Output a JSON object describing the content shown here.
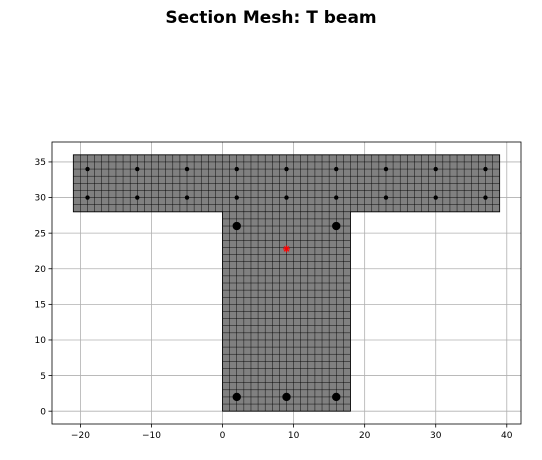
{
  "chart_data": {
    "type": "scatter",
    "title": "Section Mesh: T beam",
    "xlabel": "",
    "ylabel": "",
    "xlim": [
      -24,
      42
    ],
    "ylim": [
      -1.8,
      37.8
    ],
    "xticks": [
      -20,
      -10,
      0,
      10,
      20,
      30,
      40
    ],
    "yticks": [
      0,
      5,
      10,
      15,
      20,
      25,
      30,
      35
    ],
    "xtick_labels": [
      "−20",
      "−10",
      "0",
      "10",
      "20",
      "30",
      "40"
    ],
    "ytick_labels": [
      "0",
      "5",
      "10",
      "15",
      "20",
      "25",
      "30",
      "35"
    ],
    "grid": true,
    "section": {
      "flange": {
        "x": [
          -21,
          39
        ],
        "y": [
          28,
          36
        ]
      },
      "web": {
        "x": [
          0,
          18
        ],
        "y": [
          0,
          28
        ]
      },
      "mesh_size": 1,
      "fill_color": "#808080",
      "mesh_color": "#000000"
    },
    "bars_small": [
      {
        "x": -19,
        "y": 34
      },
      {
        "x": -12,
        "y": 34
      },
      {
        "x": -5,
        "y": 34
      },
      {
        "x": 2,
        "y": 34
      },
      {
        "x": 9,
        "y": 34
      },
      {
        "x": 16,
        "y": 34
      },
      {
        "x": 23,
        "y": 34
      },
      {
        "x": 30,
        "y": 34
      },
      {
        "x": 37,
        "y": 34
      },
      {
        "x": -19,
        "y": 30
      },
      {
        "x": -12,
        "y": 30
      },
      {
        "x": -5,
        "y": 30
      },
      {
        "x": 2,
        "y": 30
      },
      {
        "x": 9,
        "y": 30
      },
      {
        "x": 16,
        "y": 30
      },
      {
        "x": 23,
        "y": 30
      },
      {
        "x": 30,
        "y": 30
      },
      {
        "x": 37,
        "y": 30
      }
    ],
    "bars_large": [
      {
        "x": 2,
        "y": 26
      },
      {
        "x": 16,
        "y": 26
      },
      {
        "x": 2,
        "y": 2
      },
      {
        "x": 9,
        "y": 2
      },
      {
        "x": 16,
        "y": 2
      }
    ],
    "centroid": {
      "x": 9,
      "y": 22.8,
      "marker": "star",
      "color": "#ff0000"
    }
  }
}
